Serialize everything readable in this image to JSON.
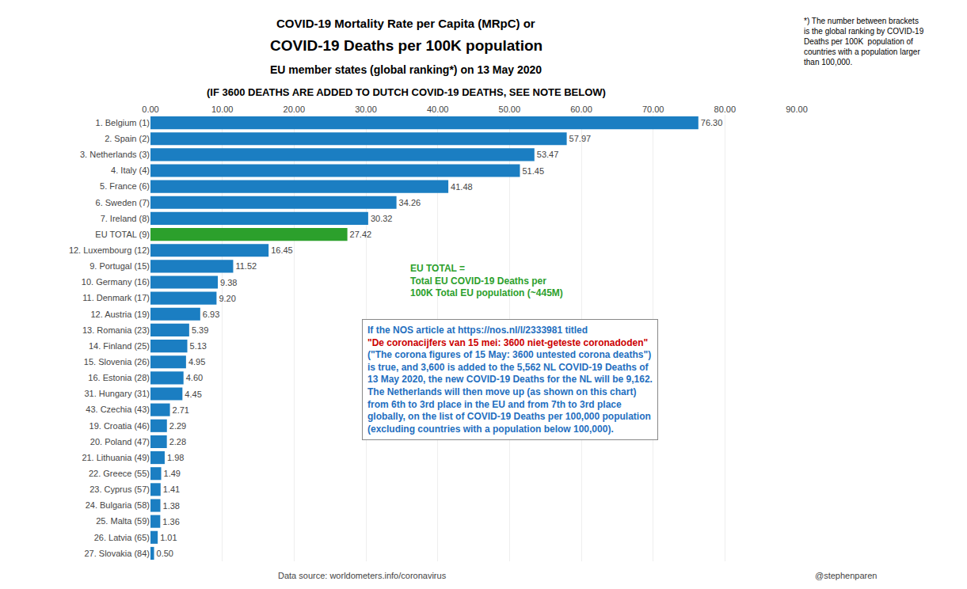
{
  "chart_data": {
    "type": "bar",
    "orientation": "horizontal",
    "title": "COVID-19 Mortality Rate per Capita (MRpC) or",
    "subtitle": [
      "COVID-19 Deaths per 100K population",
      "EU member states (global ranking*) on 13 May 2020",
      "(IF 3600 DEATHS ARE ADDED TO DUTCH COVID-19 DEATHS, SEE NOTE BELOW)"
    ],
    "categories": [
      "1. Belgium (1)",
      "2. Spain (2)",
      "3. Netherlands (3)",
      "4. Italy (4)",
      "5. France (6)",
      "6. Sweden (7)",
      "7. Ireland (8)",
      "EU TOTAL (9)",
      "12. Luxembourg (12)",
      "9. Portugal (15)",
      "10. Germany (16)",
      "11. Denmark (17)",
      "12. Austria (19)",
      "13. Romania (23)",
      "14. Finland (25)",
      "15. Slovenia (26)",
      "16. Estonia (28)",
      "31. Hungary (31)",
      "43. Czechia (43)",
      "19. Croatia (46)",
      "20. Poland (47)",
      "21. Lithuania (49)",
      "22. Greece (55)",
      "23. Cyprus (57)",
      "24. Bulgaria (58)",
      "25. Malta (59)",
      "26. Latvia (65)",
      "27. Slovakia (84)"
    ],
    "values": [
      76.3,
      57.97,
      53.47,
      51.45,
      41.48,
      34.26,
      30.32,
      27.42,
      16.45,
      11.52,
      9.38,
      9.2,
      6.93,
      5.39,
      5.13,
      4.95,
      4.6,
      4.45,
      2.71,
      2.29,
      2.28,
      1.98,
      1.49,
      1.41,
      1.38,
      1.36,
      1.01,
      0.5
    ],
    "value_labels": [
      "76.30",
      "57.97",
      "53.47",
      "51.45",
      "41.48",
      "34.26",
      "30.32",
      "27.42",
      "16.45",
      "11.52",
      "9.38",
      "9.20",
      "6.93",
      "5.39",
      "5.13",
      "4.95",
      "4.60",
      "4.45",
      "2.71",
      "2.29",
      "2.28",
      "1.98",
      "1.49",
      "1.41",
      "1.38",
      "1.36",
      "1.01",
      "0.50"
    ],
    "data_labels": true,
    "colors": [
      "#1b7ec2",
      "#1b7ec2",
      "#1b7ec2",
      "#1b7ec2",
      "#1b7ec2",
      "#1b7ec2",
      "#1b7ec2",
      "#2ca02c",
      "#1b7ec2",
      "#1b7ec2",
      "#1b7ec2",
      "#1b7ec2",
      "#1b7ec2",
      "#1b7ec2",
      "#1b7ec2",
      "#1b7ec2",
      "#1b7ec2",
      "#1b7ec2",
      "#1b7ec2",
      "#1b7ec2",
      "#1b7ec2",
      "#1b7ec2",
      "#1b7ec2",
      "#1b7ec2",
      "#1b7ec2",
      "#1b7ec2",
      "#1b7ec2",
      "#1b7ec2"
    ],
    "xlim": [
      0,
      90
    ],
    "xticks": [
      {
        "value": 0,
        "label": "0.00"
      },
      {
        "value": 10,
        "label": "10.00"
      },
      {
        "value": 20,
        "label": "20.00"
      },
      {
        "value": 30,
        "label": "30.00"
      },
      {
        "value": 40,
        "label": "40.00"
      },
      {
        "value": 50,
        "label": "50.00"
      },
      {
        "value": 60,
        "label": "60.00"
      },
      {
        "value": 70,
        "label": "70.00"
      },
      {
        "value": 80,
        "label": "80.00"
      },
      {
        "value": 90,
        "label": "90.00"
      }
    ],
    "grid": true,
    "annotations": [
      {
        "text": "EU TOTAL =\nTotal EU COVID-19 Deaths per\n100K Total EU population (~445M)",
        "color": "#2ca02c"
      },
      {
        "lines": [
          {
            "text": "If the NOS article at https://nos.nl/l/2333981 titled",
            "color": "#1f6fbf"
          },
          {
            "text": "\"De coronacijfers van 15 mei: 3600 niet-geteste coronadoden\"",
            "color": "#cc0000"
          },
          {
            "text": "(\"The corona figures of 15 May: 3600 untested corona deaths\")",
            "color": "#1f6fbf"
          },
          {
            "text": "is true, and 3,600 is added to the 5,562 NL COVID-19 Deaths of",
            "color": "#1f6fbf"
          },
          {
            "text": "13 May 2020, the new COVID-19 Deaths for the NL will be 9,162.",
            "color": "#1f6fbf"
          },
          {
            "text": "The Netherlands will then move up (as shown on this chart)",
            "color": "#1f6fbf"
          },
          {
            "text": "from 6th to 3rd place in the EU and from 7th to 3rd place",
            "color": "#1f6fbf"
          },
          {
            "text": "globally, on the list of COVID-19 Deaths per 100,000 population",
            "color": "#1f6fbf"
          },
          {
            "text": "(excluding countries with a population below 100,000).",
            "color": "#1f6fbf"
          }
        ]
      }
    ],
    "footnote": "*) The number between brackets\nis the global ranking by COVID-19\nDeaths per 100K  population of\ncountries with a population larger\nthan 100,000.",
    "source": "Data source: worldometers.info/coronavirus",
    "author": "@stephenparen"
  }
}
